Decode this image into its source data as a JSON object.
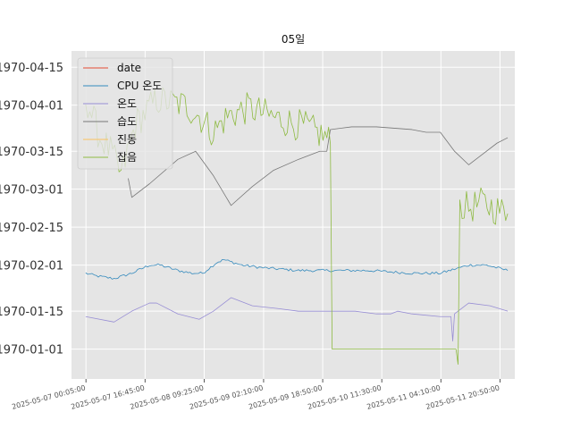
{
  "chart_data": {
    "type": "line",
    "title": "05일",
    "xlabel": "",
    "ylabel": "",
    "grid": true,
    "legend_position": "top-left",
    "x_ticks": [
      "2025-05-07 00:05:00",
      "2025-05-07 16:45:00",
      "2025-05-08 09:25:00",
      "2025-05-09 02:10:00",
      "2025-05-09 18:50:00",
      "2025-05-10 11:30:00",
      "2025-05-11 04:10:00",
      "2025-05-11 20:50:00"
    ],
    "x_range": [
      "2025-05-06 20:00:00",
      "2025-05-12 01:00:00"
    ],
    "y_ticks": [
      "1970-01-01",
      "1970-01-15",
      "1970-02-01",
      "1970-02-15",
      "1970-03-01",
      "1970-03-15",
      "1970-04-01",
      "1970-04-15"
    ],
    "y_range": [
      "1969-12-21",
      "1970-04-21"
    ],
    "series": [
      {
        "name": "date",
        "color": "#E24A33",
        "points": []
      },
      {
        "name": "CPU 온도",
        "color": "#348ABD",
        "noise": 0.5,
        "points": [
          [
            "2025-05-07 00:00:00",
            "1970-01-29"
          ],
          [
            "2025-05-07 03:00:00",
            "1970-01-28"
          ],
          [
            "2025-05-07 08:00:00",
            "1970-01-27"
          ],
          [
            "2025-05-07 13:00:00",
            "1970-01-29"
          ],
          [
            "2025-05-07 18:00:00",
            "1970-02-01"
          ],
          [
            "2025-05-07 21:00:00",
            "1970-02-01"
          ],
          [
            "2025-05-08 02:00:00",
            "1970-01-30"
          ],
          [
            "2025-05-08 06:00:00",
            "1970-01-29"
          ],
          [
            "2025-05-08 09:00:00",
            "1970-01-29"
          ],
          [
            "2025-05-08 13:00:00",
            "1970-02-02"
          ],
          [
            "2025-05-08 15:00:00",
            "1970-02-03"
          ],
          [
            "2025-05-08 20:00:00",
            "1970-02-01"
          ],
          [
            "2025-05-09 02:00:00",
            "1970-01-31"
          ],
          [
            "2025-05-09 12:00:00",
            "1970-01-30"
          ],
          [
            "2025-05-09 20:00:00",
            "1970-01-30"
          ],
          [
            "2025-05-10 08:00:00",
            "1970-01-30"
          ],
          [
            "2025-05-10 20:00:00",
            "1970-01-29"
          ],
          [
            "2025-05-11 04:00:00",
            "1970-01-29"
          ],
          [
            "2025-05-11 12:00:00",
            "1970-02-01"
          ],
          [
            "2025-05-11 17:00:00",
            "1970-02-01"
          ],
          [
            "2025-05-11 23:00:00",
            "1970-01-30"
          ]
        ]
      },
      {
        "name": "온도",
        "color": "#988ED5",
        "points": [
          [
            "2025-05-07 00:00:00",
            "1970-01-13"
          ],
          [
            "2025-05-07 08:00:00",
            "1970-01-11"
          ],
          [
            "2025-05-07 13:00:00",
            "1970-01-15"
          ],
          [
            "2025-05-07 18:00:00",
            "1970-01-18"
          ],
          [
            "2025-05-07 20:00:00",
            "1970-01-18"
          ],
          [
            "2025-05-08 02:00:00",
            "1970-01-14"
          ],
          [
            "2025-05-08 08:00:00",
            "1970-01-12"
          ],
          [
            "2025-05-08 12:00:00",
            "1970-01-15"
          ],
          [
            "2025-05-08 17:00:00",
            "1970-01-20"
          ],
          [
            "2025-05-08 23:00:00",
            "1970-01-17"
          ],
          [
            "2025-05-09 06:00:00",
            "1970-01-16"
          ],
          [
            "2025-05-09 12:00:00",
            "1970-01-15"
          ],
          [
            "2025-05-09 20:00:00",
            "1970-01-15"
          ],
          [
            "2025-05-10 04:00:00",
            "1970-01-15"
          ],
          [
            "2025-05-10 10:00:00",
            "1970-01-14"
          ],
          [
            "2025-05-10 14:00:00",
            "1970-01-14"
          ],
          [
            "2025-05-10 16:00:00",
            "1970-01-15"
          ],
          [
            "2025-05-10 20:00:00",
            "1970-01-14"
          ],
          [
            "2025-05-11 04:00:00",
            "1970-01-13"
          ],
          [
            "2025-05-11 07:00:00",
            "1970-01-13"
          ],
          [
            "2025-05-11 07:30:00",
            "1970-01-04"
          ],
          [
            "2025-05-11 08:00:00",
            "1970-01-14"
          ],
          [
            "2025-05-11 12:00:00",
            "1970-01-18"
          ],
          [
            "2025-05-11 18:00:00",
            "1970-01-17"
          ],
          [
            "2025-05-11 23:00:00",
            "1970-01-15"
          ]
        ]
      },
      {
        "name": "습도",
        "color": "#777777",
        "points": [
          [
            "2025-05-07 12:00:00",
            "1970-03-05"
          ],
          [
            "2025-05-07 13:00:00",
            "1970-02-26"
          ],
          [
            "2025-05-07 18:00:00",
            "1970-03-03"
          ],
          [
            "2025-05-08 02:00:00",
            "1970-03-12"
          ],
          [
            "2025-05-08 07:00:00",
            "1970-03-15"
          ],
          [
            "2025-05-08 12:00:00",
            "1970-03-06"
          ],
          [
            "2025-05-08 17:00:00",
            "1970-02-23"
          ],
          [
            "2025-05-08 23:00:00",
            "1970-03-02"
          ],
          [
            "2025-05-09 05:00:00",
            "1970-03-08"
          ],
          [
            "2025-05-09 12:00:00",
            "1970-03-12"
          ],
          [
            "2025-05-09 18:00:00",
            "1970-03-15"
          ],
          [
            "2025-05-09 20:00:00",
            "1970-03-15"
          ],
          [
            "2025-05-09 21:00:00",
            "1970-03-23"
          ],
          [
            "2025-05-10 03:00:00",
            "1970-03-24"
          ],
          [
            "2025-05-10 10:00:00",
            "1970-03-24"
          ],
          [
            "2025-05-10 20:00:00",
            "1970-03-23"
          ],
          [
            "2025-05-11 00:00:00",
            "1970-03-22"
          ],
          [
            "2025-05-11 04:00:00",
            "1970-03-22"
          ],
          [
            "2025-05-11 08:00:00",
            "1970-03-15"
          ],
          [
            "2025-05-11 12:00:00",
            "1970-03-10"
          ],
          [
            "2025-05-11 15:00:00",
            "1970-03-13"
          ],
          [
            "2025-05-11 20:00:00",
            "1970-03-18"
          ],
          [
            "2025-05-11 23:00:00",
            "1970-03-20"
          ]
        ]
      },
      {
        "name": "진동",
        "color": "#FBC15E",
        "points": []
      },
      {
        "name": "잡음",
        "color": "#8EBA42",
        "noise": 6,
        "points": [
          [
            "2025-05-07 00:00:00",
            "1970-04-04"
          ],
          [
            "2025-05-07 04:00:00",
            "1970-03-20"
          ],
          [
            "2025-05-07 07:00:00",
            "1970-03-15"
          ],
          [
            "2025-05-07 10:00:00",
            "1970-03-06"
          ],
          [
            "2025-05-07 14:00:00",
            "1970-03-25"
          ],
          [
            "2025-05-07 20:00:00",
            "1970-04-03"
          ],
          [
            "2025-05-08 04:00:00",
            "1970-04-01"
          ],
          [
            "2025-05-08 08:00:00",
            "1970-03-28"
          ],
          [
            "2025-05-08 12:00:00",
            "1970-03-22"
          ],
          [
            "2025-05-08 16:00:00",
            "1970-03-28"
          ],
          [
            "2025-05-08 22:00:00",
            "1970-03-31"
          ],
          [
            "2025-05-09 06:00:00",
            "1970-03-27"
          ],
          [
            "2025-05-09 14:00:00",
            "1970-03-24"
          ],
          [
            "2025-05-09 20:00:00",
            "1970-03-20"
          ],
          [
            "2025-05-09 21:00:00",
            "1970-03-18"
          ],
          [
            "2025-05-09 21:30:00",
            "1970-01-01"
          ],
          [
            "2025-05-11 09:00:00",
            "1970-01-01"
          ],
          [
            "2025-05-11 09:30:00",
            "1970-02-23"
          ],
          [
            "2025-05-11 12:00:00",
            "1970-02-22"
          ],
          [
            "2025-05-11 16:00:00",
            "1970-02-24"
          ],
          [
            "2025-05-11 19:00:00",
            "1970-02-22"
          ],
          [
            "2025-05-11 23:00:00",
            "1970-02-20"
          ]
        ]
      }
    ]
  }
}
